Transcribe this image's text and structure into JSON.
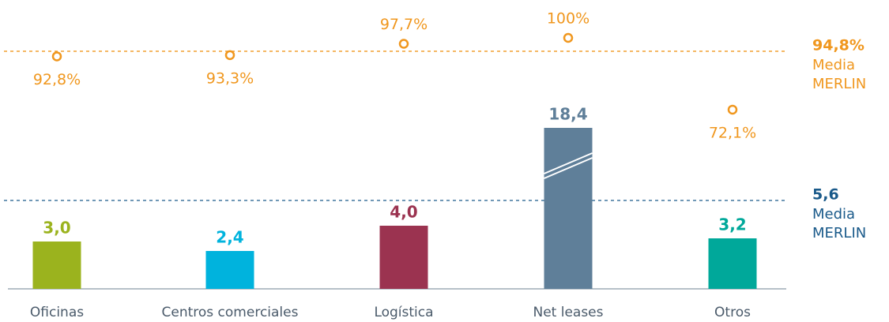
{
  "chart_data": {
    "type": "bar",
    "categories": [
      "Oficinas",
      "Centros comerciales",
      "Logística",
      "Net leases",
      "Otros"
    ],
    "ylim": [
      0,
      10.2
    ],
    "y2lim": [
      0,
      100
    ],
    "series": [
      {
        "values": [
          3.0,
          2.4,
          4.0,
          18.4,
          3.2
        ],
        "value_labels": [
          "3,0",
          "2,4",
          "4,0",
          "18,4",
          "3,2"
        ],
        "colors": [
          "#9bb31e",
          "#00b3dd",
          "#9b3350",
          "#5f7f99",
          "#00a89a"
        ]
      },
      {
        "axis": "y2",
        "values": [
          92.8,
          93.3,
          97.7,
          100,
          72.1
        ],
        "value_labels": [
          "92,8%",
          "93,3%",
          "97,7%",
          "100%",
          "72,1%"
        ],
        "color": "#f0971e"
      }
    ],
    "reference_lines": [
      {
        "axis": "y2",
        "value": 94.8,
        "label": "94,8%",
        "text": [
          "Media",
          "MERLIN"
        ],
        "color": "#f0971e"
      },
      {
        "axis": "y",
        "value": 5.6,
        "label": "5,6",
        "text": [
          "Media",
          "MERLIN"
        ],
        "color": "#1a5a8a"
      }
    ]
  }
}
